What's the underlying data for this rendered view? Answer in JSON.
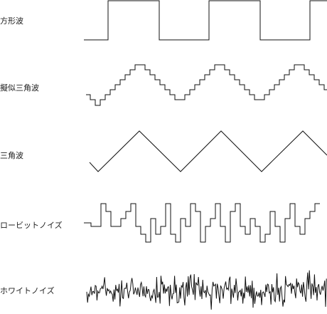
{
  "waveforms": [
    {
      "id": "square",
      "label": "方形波"
    },
    {
      "id": "pseudo-triangle",
      "label": "擬似三角波"
    },
    {
      "id": "triangle",
      "label": "三角波"
    },
    {
      "id": "low-bit-noise",
      "label": "ロービットノイズ"
    },
    {
      "id": "white-noise",
      "label": "ホワイトノイズ"
    }
  ]
}
